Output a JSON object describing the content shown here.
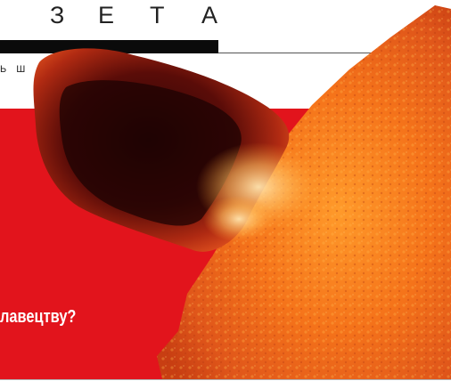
{
  "masthead": {
    "letters": [
      "З",
      "Е",
      "Т",
      "А"
    ],
    "tagline": "Ь Ш"
  },
  "headline": "лавецтву?",
  "colors": {
    "band": "#e2141c",
    "masthead_bar": "#0b0b0b",
    "text_dark": "#222222",
    "headline": "#ffffff"
  },
  "image": {
    "icon": "solar-prominence-photo"
  }
}
